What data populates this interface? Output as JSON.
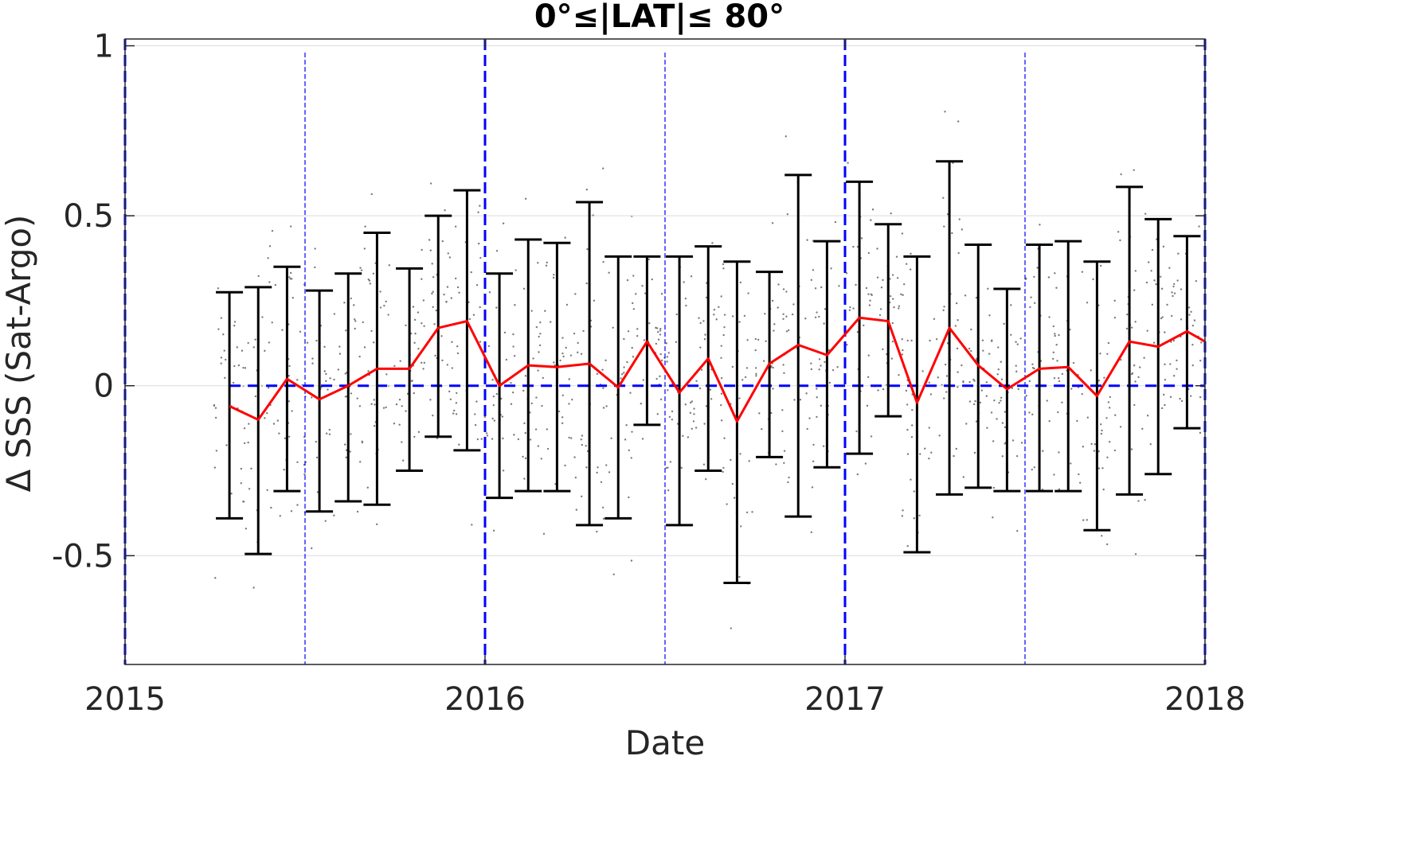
{
  "chart_data": {
    "type": "line",
    "title": "0°≤|LAT|≤ 80°",
    "xlabel": "Date",
    "ylabel": "Δ SSS (Sat-Argo)",
    "xlim": [
      2015.0,
      2018.0
    ],
    "ylim": [
      -0.82,
      1.02
    ],
    "x_ticks": [
      2015,
      2016,
      2017,
      2018
    ],
    "x_tick_labels": [
      "2015",
      "2016",
      "2017",
      "2018"
    ],
    "y_ticks": [
      -0.5,
      0,
      0.5,
      1
    ],
    "y_tick_labels": [
      "-0.5",
      "0",
      "0.5",
      "1"
    ],
    "grid": "horizontal",
    "colors": {
      "mean_line": "#ff0000",
      "error_bars": "#000000",
      "reference_lines": "#0000ff",
      "scatter": "#7a7a7a",
      "grid": "#dcdcdc",
      "axes": "#262626"
    },
    "reference_lines": {
      "zero_dashed": {
        "y": 0,
        "from_x": 2015.29,
        "to_x": 2018.0
      },
      "year_markers_thick": [
        2015.0,
        2016.0,
        2017.0,
        2018.0
      ],
      "half_year_markers_thin": [
        2015.5,
        2016.5,
        2017.5
      ]
    },
    "series": [
      {
        "x": [
          2015.29,
          2015.37,
          2015.45,
          2015.54,
          2015.62,
          2015.7,
          2015.79,
          2015.87,
          2015.95,
          2016.04,
          2016.12,
          2016.2,
          2016.29,
          2016.37,
          2016.45,
          2016.54,
          2016.62,
          2016.7,
          2016.79,
          2016.87,
          2016.95,
          2017.04,
          2017.12,
          2017.2,
          2017.29,
          2017.37,
          2017.45,
          2017.54,
          2017.62,
          2017.7,
          2017.79,
          2017.87,
          2017.95,
          2018.0
        ],
        "mean": [
          -0.06,
          -0.1,
          0.02,
          -0.04,
          0.0,
          0.05,
          0.05,
          0.17,
          0.19,
          0.0,
          0.06,
          0.055,
          0.065,
          -0.005,
          0.13,
          -0.02,
          0.08,
          -0.105,
          0.065,
          0.12,
          0.09,
          0.2,
          0.19,
          -0.05,
          0.17,
          0.06,
          -0.01,
          0.05,
          0.055,
          -0.03,
          0.13,
          0.115,
          0.16,
          0.13
        ],
        "upper": [
          0.275,
          0.29,
          0.35,
          0.28,
          0.33,
          0.45,
          0.345,
          0.5,
          0.575,
          0.33,
          0.43,
          0.42,
          0.54,
          0.38,
          0.38,
          0.38,
          0.41,
          0.365,
          0.335,
          0.62,
          0.425,
          0.6,
          0.475,
          0.38,
          0.66,
          0.415,
          0.285,
          0.415,
          0.425,
          0.365,
          0.585,
          0.49,
          0.44,
          null
        ],
        "lower": [
          -0.39,
          -0.495,
          -0.31,
          -0.37,
          -0.34,
          -0.35,
          -0.25,
          -0.15,
          -0.19,
          -0.33,
          -0.31,
          -0.31,
          -0.41,
          -0.39,
          -0.115,
          -0.41,
          -0.25,
          -0.58,
          -0.21,
          -0.385,
          -0.24,
          -0.2,
          -0.09,
          -0.49,
          -0.32,
          -0.3,
          -0.31,
          -0.31,
          -0.31,
          -0.425,
          -0.32,
          -0.26,
          -0.125,
          null
        ]
      }
    ]
  }
}
